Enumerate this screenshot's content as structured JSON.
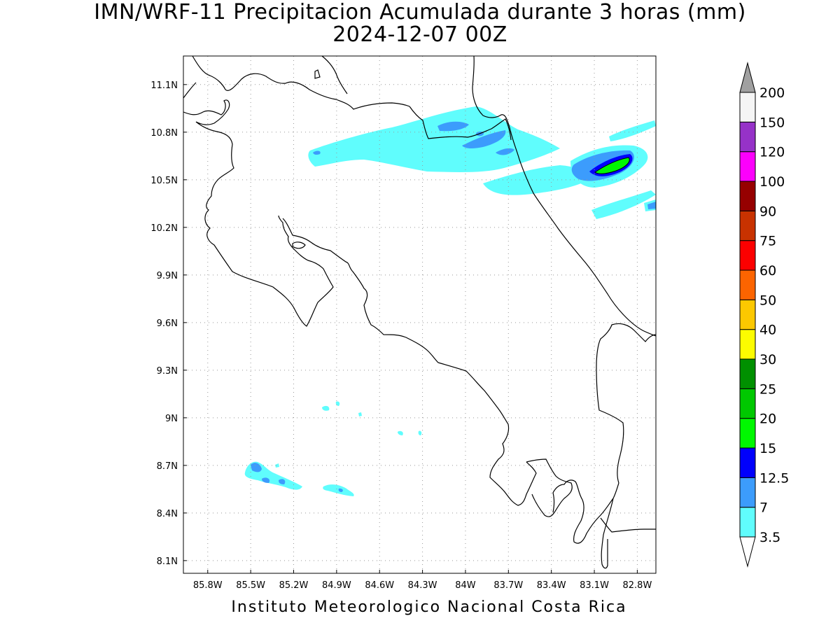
{
  "title": {
    "line1": "IMN/WRF-11 Precipitacion Acumulada durante 3 horas (mm)",
    "line2": "2024-12-07 00Z"
  },
  "footer": "Instituto Meteorologico Nacional Costa Rica",
  "map": {
    "lon_range": [
      -85.97,
      -82.67
    ],
    "lat_range": [
      8.02,
      11.28
    ],
    "x_ticks": [
      "85.8W",
      "85.5W",
      "85.2W",
      "84.9W",
      "84.6W",
      "84.3W",
      "84W",
      "83.7W",
      "83.4W",
      "83.1W",
      "82.8W"
    ],
    "x_tick_values": [
      -85.8,
      -85.5,
      -85.2,
      -84.9,
      -84.6,
      -84.3,
      -84.0,
      -83.7,
      -83.4,
      -83.1,
      -82.8
    ],
    "y_ticks": [
      "8.1N",
      "8.4N",
      "8.7N",
      "9N",
      "9.3N",
      "9.6N",
      "9.9N",
      "10.2N",
      "10.5N",
      "10.8N",
      "11.1N"
    ],
    "y_tick_values": [
      8.1,
      8.4,
      8.7,
      9.0,
      9.3,
      9.6,
      9.9,
      10.2,
      10.5,
      10.8,
      11.1
    ],
    "grid": "dotted"
  },
  "legend": {
    "levels": [
      "3.5",
      "7",
      "12.5",
      "15",
      "20",
      "25",
      "30",
      "40",
      "50",
      "60",
      "75",
      "90",
      "100",
      "120",
      "150",
      "200"
    ],
    "colors": [
      "#60fdfd",
      "#3c9cfc",
      "#0000fc",
      "#00f800",
      "#00c800",
      "#009000",
      "#fcfc00",
      "#fcc800",
      "#fc6400",
      "#fc0000",
      "#c83200",
      "#960000",
      "#fc00fc",
      "#9632c8",
      "#f5f5f5"
    ],
    "top_arrow_color": "#a0a0a0",
    "bottom_arrow_color": "#ffffff"
  },
  "colors": {
    "coast": "#000000",
    "grid": "#999999",
    "light_rain": "#60fdfd",
    "moderate_rain": "#3c9cfc",
    "heavy_rain": "#0000fc",
    "very_heavy_rain": "#00f800"
  }
}
